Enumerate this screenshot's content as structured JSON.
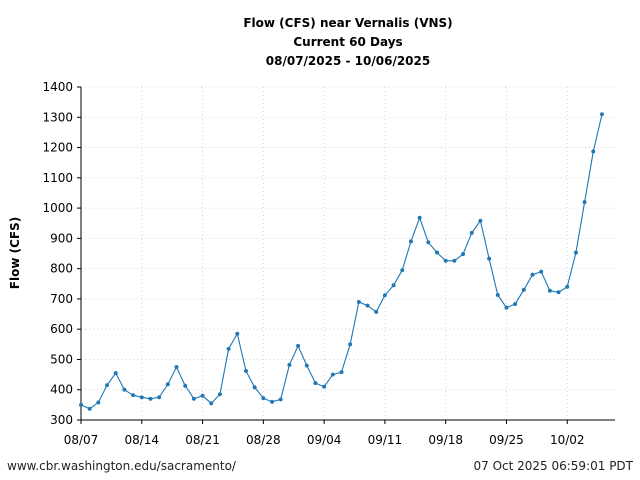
{
  "chart_data": {
    "type": "line",
    "title_lines": [
      "Flow (CFS) near Vernalis (VNS)",
      "Current 60 Days",
      "08/07/2025 - 10/06/2025"
    ],
    "xlabel": "",
    "ylabel": "Flow (CFS)",
    "ylim": [
      300,
      1400
    ],
    "yticks": [
      300,
      400,
      500,
      600,
      700,
      800,
      900,
      1000,
      1100,
      1200,
      1300,
      1400
    ],
    "xticks": [
      "08/07",
      "08/14",
      "08/21",
      "08/28",
      "09/04",
      "09/11",
      "09/18",
      "09/25",
      "10/02"
    ],
    "xlim_days": [
      0,
      61.5
    ],
    "grid": true,
    "line_color": "#1f77b4",
    "series": [
      {
        "values": [
          350,
          337,
          358,
          415,
          455,
          400,
          382,
          375,
          370,
          375,
          418,
          475,
          413,
          370,
          380,
          355,
          385,
          535,
          585,
          462,
          408,
          372,
          360,
          368,
          482,
          545,
          480,
          422,
          410,
          450,
          458,
          550,
          690,
          678,
          657,
          712,
          745,
          795,
          890,
          968,
          887,
          853,
          826,
          826,
          848,
          918,
          958,
          833,
          713,
          671,
          683,
          730,
          780,
          790,
          727,
          722,
          740,
          853,
          1020,
          1187,
          1310
        ]
      }
    ]
  },
  "footer": {
    "left": "www.cbr.washington.edu/sacramento/",
    "right": "07 Oct 2025 06:59:01 PDT"
  }
}
